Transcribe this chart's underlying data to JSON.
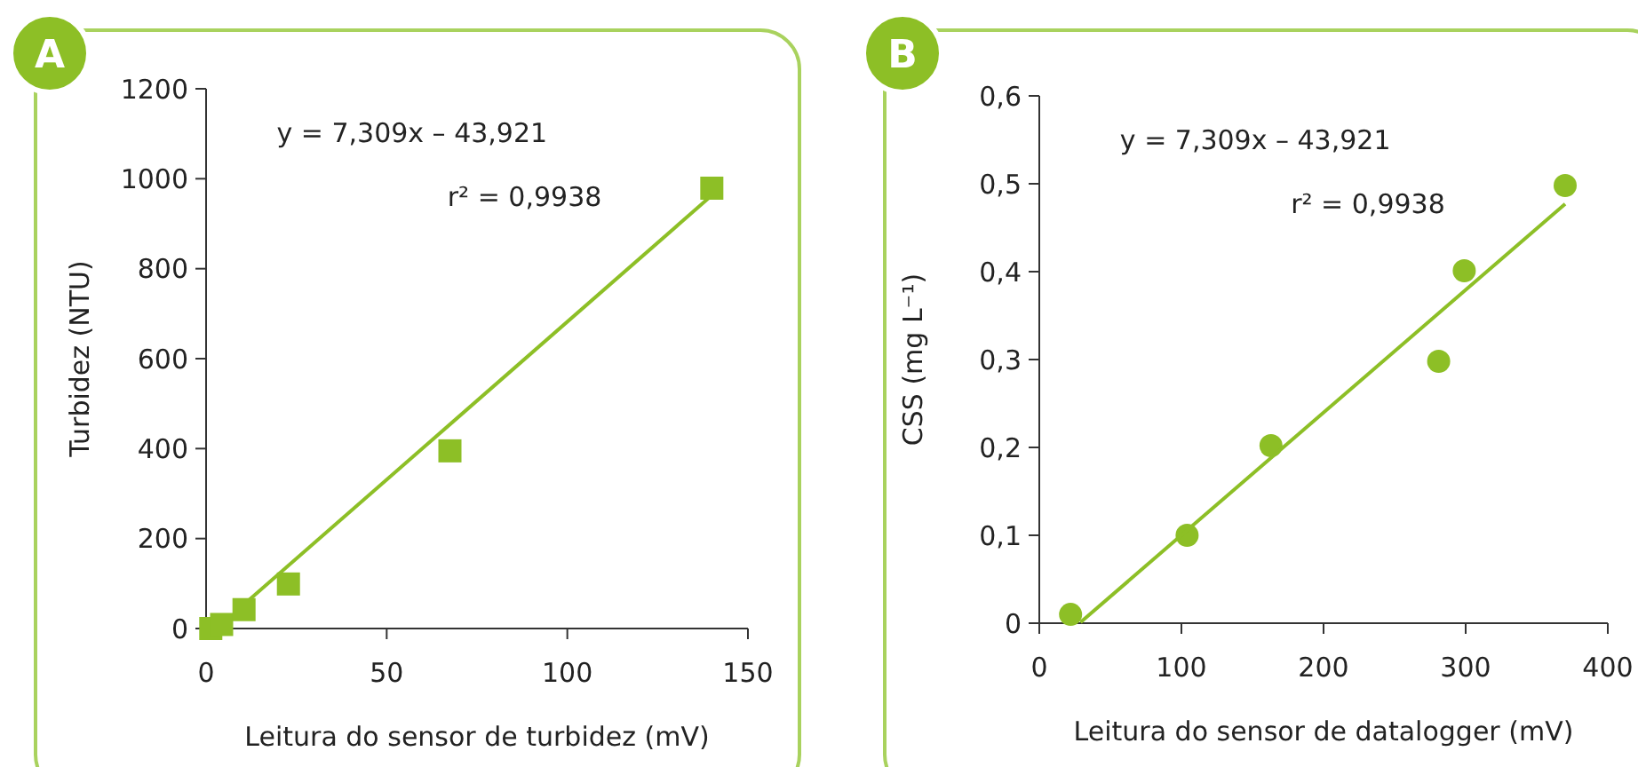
{
  "chart_data": [
    {
      "type": "scatter",
      "title": "A",
      "xlabel": "Leitura do sensor de turbidez (mV)",
      "ylabel": "Turbidez (NTU)",
      "annotations": [
        "y = 7,309x – 43,921",
        "r² = 0,9938"
      ],
      "xlim": [
        0,
        150
      ],
      "xticks": [
        0,
        50,
        100,
        150
      ],
      "ylim": [
        0,
        1200
      ],
      "yticks": [
        0,
        200,
        400,
        600,
        800,
        1000,
        1200
      ],
      "series": [
        {
          "color": "#8dbf26",
          "marker": "square",
          "x": [
            1.3,
            4.3,
            10.5,
            22.8,
            67.5,
            140
          ],
          "values": [
            0,
            9,
            42,
            99,
            395,
            979
          ]
        },
        {
          "type": "line",
          "marker": "none",
          "color": "#8dbf26",
          "x": [
            11.7,
            140
          ],
          "values": [
            62,
            963
          ]
        }
      ]
    },
    {
      "type": "scatter",
      "title": "B",
      "xlabel": "Leitura do sensor de datalogger (mV)",
      "ylabel": "CSS (mg L⁻¹)",
      "annotations": [
        "y = 7,309x – 43,921",
        "r² = 0,9938"
      ],
      "xlim": [
        0,
        400
      ],
      "xticks": [
        0,
        100,
        200,
        300,
        400
      ],
      "ylim": [
        0,
        0.6
      ],
      "yticks": [
        0,
        {
          "value": 0.1,
          "label": "0,1"
        },
        {
          "value": 0.2,
          "label": "0,2"
        },
        {
          "value": 0.3,
          "label": "0,3"
        },
        {
          "value": 0.4,
          "label": "0,4"
        },
        {
          "value": 0.5,
          "label": "0,5"
        },
        {
          "value": 0.6,
          "label": "0,6"
        }
      ],
      "series": [
        {
          "color": "#8dbf26",
          "marker": "circle",
          "x": [
            22,
            104,
            163,
            281,
            299,
            370
          ],
          "values": [
            0.01,
            0.1,
            0.202,
            0.298,
            0.401,
            0.498
          ]
        },
        {
          "type": "line",
          "marker": "none",
          "color": "#8dbf26",
          "x": [
            29,
            370
          ],
          "values": [
            0.001,
            0.477
          ]
        }
      ]
    }
  ]
}
